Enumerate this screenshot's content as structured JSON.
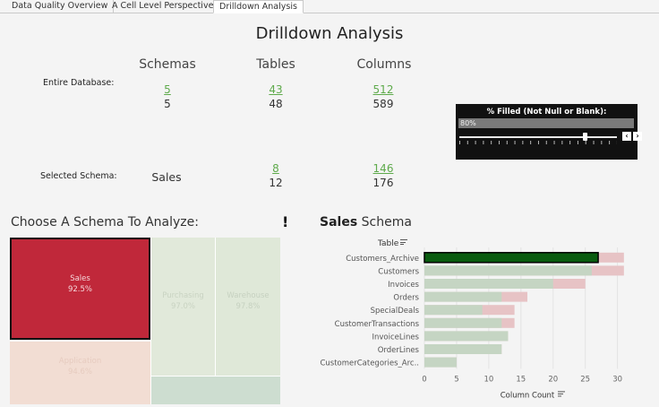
{
  "tabs": [
    {
      "label": "Data Quality Overview",
      "active": false
    },
    {
      "label": "A Cell Level Perspective",
      "active": false
    },
    {
      "label": "Drilldown Analysis",
      "active": true
    }
  ],
  "title": "Drilldown Analysis",
  "summary": {
    "columns": [
      "Schemas",
      "Tables",
      "Columns"
    ],
    "entire_database_label": "Entire Database:",
    "entire": {
      "schemas_filled": "5",
      "schemas_total": "5",
      "tables_filled": "43",
      "tables_total": "48",
      "columns_filled": "512",
      "columns_total": "589"
    },
    "selected_schema_label": "Selected Schema:",
    "selected": {
      "schema": "Sales",
      "tables_filled": "8",
      "tables_total": "12",
      "columns_filled": "146",
      "columns_total": "176"
    }
  },
  "filter": {
    "title": "% Filled (Not Null or Blank):",
    "value": "80%",
    "slider_fraction": 0.8,
    "prev_icon": "chevron-left-icon",
    "next_icon": "chevron-right-icon"
  },
  "treemap": {
    "title": "Choose A Schema To Analyze:",
    "alert_glyph": "!",
    "cells": [
      {
        "name": "Sales",
        "pct": "92.5%",
        "color": "#c0283a",
        "selected": true
      },
      {
        "name": "Purchasing",
        "pct": "97.0%",
        "color": "#e1e9da"
      },
      {
        "name": "Warehouse",
        "pct": "97.8%",
        "color": "#dfe8d8"
      },
      {
        "name": "Application",
        "pct": "94.6%",
        "color": "#f2ddd3"
      },
      {
        "name": "",
        "pct": "",
        "color": "#cdddd0"
      }
    ]
  },
  "schema_chart_title": {
    "bold": "Sales",
    "rest": " Schema"
  },
  "chart_data": {
    "type": "bar",
    "orientation": "horizontal",
    "ylabel": "Table",
    "xlabel": "Column Count",
    "xlim": [
      0,
      32
    ],
    "xticks": [
      0,
      5,
      10,
      15,
      20,
      25,
      30
    ],
    "categories": [
      "Customers_Archive",
      "Customers",
      "Invoices",
      "Orders",
      "SpecialDeals",
      "CustomerTransactions",
      "InvoiceLines",
      "OrderLines",
      "CustomerCategories_Arc.."
    ],
    "series": [
      {
        "values": [
          27,
          26,
          20,
          12,
          9,
          12,
          13,
          12,
          5
        ]
      },
      {
        "values": [
          31,
          31,
          25,
          16,
          14,
          14,
          13,
          12,
          5
        ]
      }
    ],
    "colors": {
      "filled": "#c5d5c3",
      "unfilled": "#e7c3c5",
      "highlight": "#0a5c10"
    },
    "highlighted_category": "Customers_Archive"
  }
}
